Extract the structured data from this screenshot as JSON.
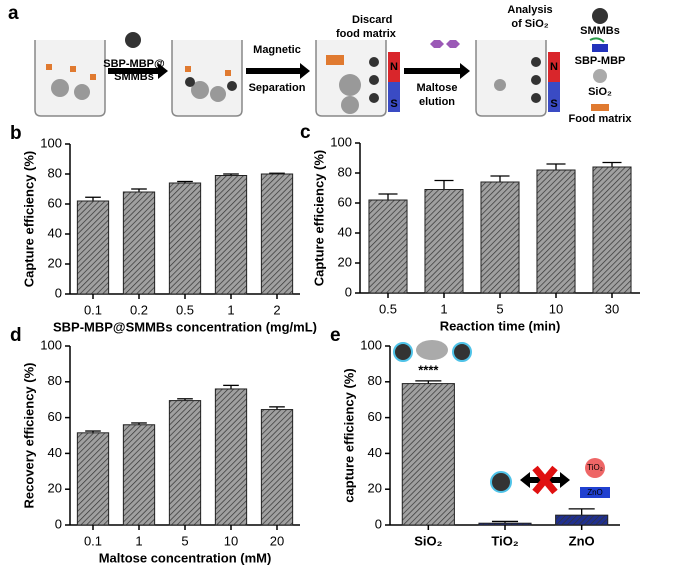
{
  "schematic": {
    "panel": "a",
    "labels": [
      "SBP-MBP@",
      "SMMBs",
      "Magnetic",
      "Separation",
      "Discard",
      "food matrix",
      "Maltose",
      "elution",
      "Analysis",
      "of SiO₂",
      "N",
      "S",
      "N",
      "S"
    ],
    "legend": [
      "SMMBs",
      "SBP-MBP",
      "SiO₂",
      "Food matrix"
    ]
  },
  "chart_data": [
    {
      "type": "bar",
      "panel": "b",
      "ylabel": "Capture efficiency (%)",
      "xlabel": "SBP-MBP@SMMBs concentration (mg/mL)",
      "categories": [
        "0.1",
        "0.2",
        "0.5",
        "1",
        "2"
      ],
      "values": [
        62,
        68,
        74,
        79,
        80
      ],
      "errors": [
        2.5,
        2,
        1,
        1,
        0.5
      ],
      "color": "#a0a0a0",
      "ylim": [
        0,
        100
      ],
      "yticks": [
        0,
        20,
        40,
        60,
        80,
        100
      ]
    },
    {
      "type": "bar",
      "panel": "c",
      "ylabel": "Capture efficiency (%)",
      "xlabel": "Reaction time (min)",
      "categories": [
        "0.5",
        "1",
        "5",
        "10",
        "30"
      ],
      "values": [
        62,
        69,
        74,
        82,
        84
      ],
      "errors": [
        4,
        6,
        4,
        4,
        3
      ],
      "color": "#a0a0a0",
      "ylim": [
        0,
        100
      ],
      "yticks": [
        0,
        20,
        40,
        60,
        80,
        100
      ]
    },
    {
      "type": "bar",
      "panel": "d",
      "ylabel": "Recovery  efficiency (%)",
      "xlabel": "Maltose concentration (mM)",
      "categories": [
        "0.1",
        "1",
        "5",
        "10",
        "20"
      ],
      "values": [
        51.5,
        56,
        69.5,
        76,
        64.5
      ],
      "errors": [
        1,
        1,
        1,
        2,
        1.5
      ],
      "color": "#a0a0a0",
      "ylim": [
        0,
        100
      ],
      "yticks": [
        0,
        20,
        40,
        60,
        80,
        100
      ]
    },
    {
      "type": "bar",
      "panel": "e",
      "ylabel": "capture efficiency (%)",
      "categories": [
        "SiO₂",
        "TiO₂",
        "ZnO"
      ],
      "values": [
        79,
        1,
        5.5
      ],
      "errors": [
        1.5,
        1,
        3.5
      ],
      "colors": [
        "#a0a0a0",
        "#1f2f8f",
        "#1f2f8f"
      ],
      "ylim": [
        0,
        100
      ],
      "yticks": [
        0,
        20,
        40,
        60,
        80,
        100
      ],
      "annotation": "****",
      "small_labels": [
        "TiO₂",
        "ZnO"
      ]
    }
  ]
}
